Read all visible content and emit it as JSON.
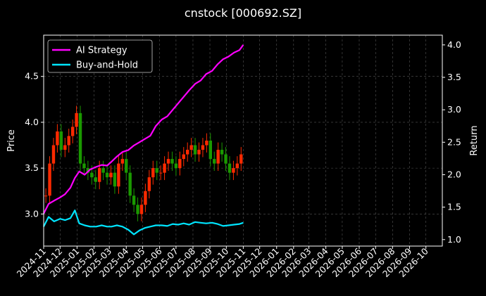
{
  "chart_data": {
    "type": "line",
    "title": "cnstock [000692.SZ]",
    "ylabel_left": "Price",
    "ylabel_right": "Return",
    "xlabel": "",
    "grid": true,
    "legend_placement": "top-left",
    "colors": {
      "background": "#000000",
      "text": "#ffffff",
      "grid": "#555555",
      "ai_strategy": "#ff00ff",
      "buy_and_hold": "#00e5ff",
      "candle_up": "#ff2a00",
      "candle_down": "#1a9900"
    },
    "x_range": [
      "2024-11-01",
      "2026-10-31"
    ],
    "x_ticks": [
      "2024-11",
      "2024-12",
      "2025-01",
      "2025-02",
      "2025-03",
      "2025-04",
      "2025-05",
      "2025-06",
      "2025-07",
      "2025-08",
      "2025-09",
      "2025-10",
      "2025-11",
      "2025-12",
      "2026-01",
      "2026-02",
      "2026-03",
      "2026-04",
      "2026-05",
      "2026-06",
      "2026-07",
      "2026-08",
      "2026-09",
      "2026-10"
    ],
    "y_left_range": [
      2.65,
      4.95
    ],
    "y_left_ticks": [
      "3.0",
      "3.5",
      "4.0",
      "4.5"
    ],
    "y_right_range": [
      0.9,
      4.15
    ],
    "y_right_ticks": [
      "1.0",
      "1.5",
      "2.0",
      "2.5",
      "3.0",
      "3.5",
      "4.0"
    ],
    "price_series": {
      "name": "",
      "axis": "left",
      "dates": [
        "2024-11-05",
        "2024-11-12",
        "2024-11-19",
        "2024-11-26",
        "2024-12-03",
        "2024-12-10",
        "2024-12-17",
        "2024-12-24",
        "2024-12-31",
        "2025-01-07",
        "2025-01-14",
        "2025-01-21",
        "2025-01-28",
        "2025-02-04",
        "2025-02-11",
        "2025-02-18",
        "2025-02-25",
        "2025-03-04",
        "2025-03-11",
        "2025-03-18",
        "2025-03-25",
        "2025-04-01",
        "2025-04-08",
        "2025-04-15",
        "2025-04-22",
        "2025-04-29",
        "2025-05-06",
        "2025-05-13",
        "2025-05-20",
        "2025-05-27",
        "2025-06-03",
        "2025-06-10",
        "2025-06-17",
        "2025-06-24",
        "2025-07-01",
        "2025-07-08",
        "2025-07-15",
        "2025-07-22",
        "2025-07-29",
        "2025-08-05",
        "2025-08-12",
        "2025-08-19",
        "2025-08-26",
        "2025-09-02",
        "2025-09-09",
        "2025-09-16",
        "2025-09-23",
        "2025-09-30",
        "2025-10-07",
        "2025-10-14",
        "2025-10-21",
        "2025-10-28"
      ],
      "values": [
        3.2,
        3.55,
        3.75,
        3.9,
        3.7,
        3.75,
        3.85,
        3.95,
        4.1,
        3.55,
        3.5,
        3.45,
        3.4,
        3.35,
        3.5,
        3.45,
        3.4,
        3.45,
        3.3,
        3.55,
        3.6,
        3.45,
        3.2,
        3.1,
        3.0,
        3.1,
        3.25,
        3.4,
        3.5,
        3.45,
        3.45,
        3.55,
        3.6,
        3.55,
        3.5,
        3.6,
        3.65,
        3.7,
        3.75,
        3.65,
        3.7,
        3.75,
        3.8,
        3.6,
        3.55,
        3.7,
        3.65,
        3.55,
        3.45,
        3.5,
        3.55,
        3.65
      ]
    },
    "series": [
      {
        "name": "AI Strategy",
        "axis": "right",
        "dates": [
          "2024-11-01",
          "2024-11-10",
          "2024-11-20",
          "2024-12-01",
          "2024-12-10",
          "2024-12-20",
          "2024-12-28",
          "2025-01-05",
          "2025-01-15",
          "2025-01-25",
          "2025-02-05",
          "2025-02-15",
          "2025-02-25",
          "2025-03-05",
          "2025-03-15",
          "2025-03-25",
          "2025-04-05",
          "2025-04-15",
          "2025-04-25",
          "2025-05-05",
          "2025-05-15",
          "2025-05-25",
          "2025-06-05",
          "2025-06-15",
          "2025-06-25",
          "2025-07-05",
          "2025-07-15",
          "2025-07-25",
          "2025-08-05",
          "2025-08-15",
          "2025-08-25",
          "2025-09-05",
          "2025-09-15",
          "2025-09-25",
          "2025-10-05",
          "2025-10-15",
          "2025-10-25",
          "2025-11-01"
        ],
        "values": [
          1.4,
          1.55,
          1.6,
          1.65,
          1.7,
          1.8,
          1.95,
          2.05,
          2.0,
          2.08,
          2.12,
          2.15,
          2.14,
          2.2,
          2.28,
          2.35,
          2.38,
          2.45,
          2.5,
          2.55,
          2.6,
          2.75,
          2.85,
          2.9,
          3.0,
          3.1,
          3.2,
          3.3,
          3.4,
          3.45,
          3.55,
          3.6,
          3.7,
          3.78,
          3.82,
          3.88,
          3.92,
          4.0
        ]
      },
      {
        "name": "Buy-and-Hold",
        "axis": "right",
        "dates": [
          "2024-11-01",
          "2024-11-10",
          "2024-11-20",
          "2024-12-01",
          "2024-12-10",
          "2024-12-20",
          "2024-12-28",
          "2025-01-05",
          "2025-01-15",
          "2025-01-25",
          "2025-02-05",
          "2025-02-15",
          "2025-02-25",
          "2025-03-05",
          "2025-03-15",
          "2025-03-25",
          "2025-04-05",
          "2025-04-15",
          "2025-04-25",
          "2025-05-05",
          "2025-05-15",
          "2025-05-25",
          "2025-06-05",
          "2025-06-15",
          "2025-06-25",
          "2025-07-05",
          "2025-07-15",
          "2025-07-25",
          "2025-08-05",
          "2025-08-15",
          "2025-08-25",
          "2025-09-05",
          "2025-09-15",
          "2025-09-25",
          "2025-10-05",
          "2025-10-15",
          "2025-10-25",
          "2025-11-01"
        ],
        "values": [
          1.2,
          1.35,
          1.28,
          1.32,
          1.3,
          1.33,
          1.45,
          1.25,
          1.22,
          1.2,
          1.2,
          1.22,
          1.2,
          1.2,
          1.22,
          1.2,
          1.15,
          1.08,
          1.14,
          1.18,
          1.2,
          1.22,
          1.22,
          1.21,
          1.24,
          1.23,
          1.25,
          1.23,
          1.27,
          1.26,
          1.25,
          1.26,
          1.24,
          1.21,
          1.22,
          1.23,
          1.24,
          1.26
        ]
      }
    ]
  }
}
